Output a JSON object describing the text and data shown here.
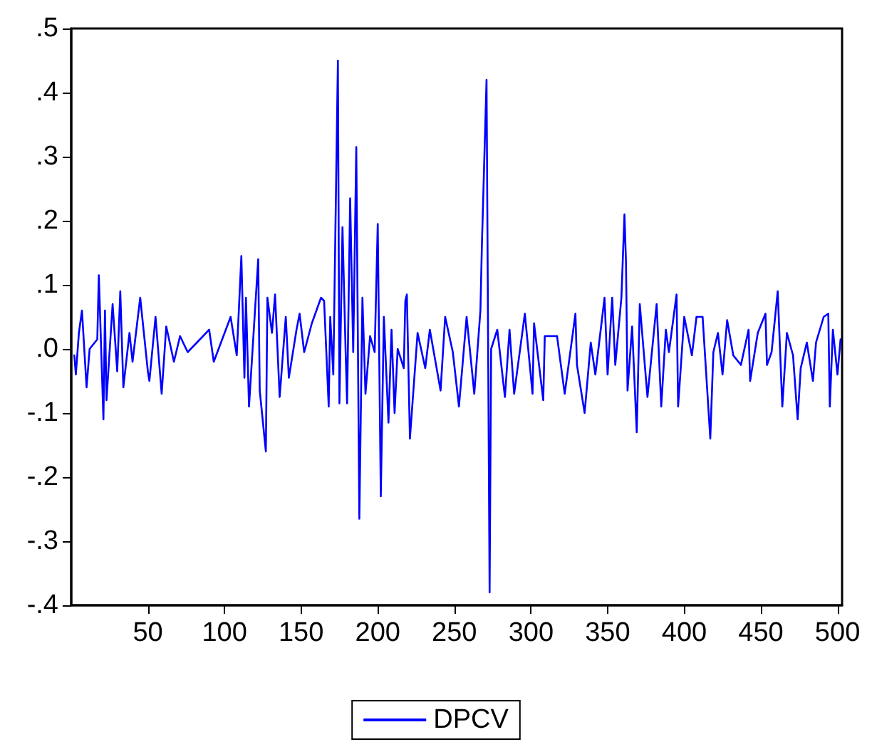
{
  "chart_data": {
    "type": "line",
    "x": [
      2,
      3,
      5,
      7,
      10,
      12,
      17,
      18,
      21,
      22,
      23,
      27,
      30,
      32,
      34,
      38,
      40,
      45,
      50,
      51,
      55,
      59,
      62,
      67,
      71,
      76,
      90,
      93,
      104,
      108,
      111,
      113,
      114,
      116,
      122,
      123,
      127,
      128,
      131,
      133,
      136,
      140,
      142,
      147,
      149,
      152,
      157,
      163,
      165,
      168,
      169,
      171,
      174,
      175,
      177,
      179,
      180,
      182,
      184,
      186,
      188,
      190,
      192,
      195,
      198,
      200,
      202,
      204,
      207,
      209,
      211,
      213,
      217,
      218,
      219,
      221,
      226,
      231,
      234,
      241,
      244,
      249,
      253,
      258,
      263,
      267,
      268,
      271,
      273,
      274,
      278,
      283,
      286,
      289,
      296,
      301,
      302,
      308,
      309,
      317,
      322,
      329,
      330,
      335,
      339,
      342,
      348,
      350,
      353,
      355,
      359,
      361,
      362,
      363,
      366,
      369,
      371,
      376,
      382,
      385,
      388,
      390,
      395,
      396,
      400,
      405,
      408,
      412,
      417,
      419,
      422,
      425,
      428,
      432,
      437,
      442,
      443,
      448,
      453,
      454,
      457,
      461,
      464,
      467,
      471,
      474,
      476,
      480,
      484,
      486,
      491,
      494,
      495,
      497,
      500,
      502
    ],
    "series": [
      {
        "name": "DPCV",
        "color": "#0000ff",
        "values": [
          -0.01,
          -0.04,
          0.025,
          0.06,
          -0.06,
          0,
          0.015,
          0.115,
          -0.11,
          0.06,
          -0.08,
          0.07,
          -0.035,
          0.09,
          -0.06,
          0.025,
          -0.02,
          0.08,
          -0.035,
          -0.05,
          0.05,
          -0.07,
          0.035,
          -0.02,
          0.02,
          -0.005,
          0.03,
          -0.02,
          0.05,
          -0.01,
          0.145,
          -0.045,
          0.08,
          -0.09,
          0.14,
          -0.065,
          -0.16,
          0.08,
          0.025,
          0.085,
          -0.075,
          0.05,
          -0.045,
          0.03,
          0.055,
          -0.005,
          0.04,
          0.08,
          0.075,
          -0.09,
          0.05,
          -0.04,
          0.45,
          -0.085,
          0.19,
          0,
          -0.085,
          0.235,
          -0.005,
          0.315,
          -0.265,
          0.08,
          -0.07,
          0.02,
          -0.005,
          0.195,
          -0.23,
          0.05,
          -0.115,
          0.03,
          -0.1,
          0,
          -0.03,
          0.075,
          0.085,
          -0.14,
          0.025,
          -0.03,
          0.03,
          -0.065,
          0.05,
          -0.005,
          -0.09,
          0.05,
          -0.07,
          0.06,
          0.165,
          0.42,
          -0.38,
          0,
          0.03,
          -0.075,
          0.03,
          -0.07,
          0.055,
          -0.07,
          0.04,
          -0.08,
          0.02,
          0.02,
          -0.07,
          0.055,
          -0.025,
          -0.1,
          0.01,
          -0.04,
          0.08,
          -0.04,
          0.08,
          -0.025,
          0.08,
          0.21,
          0.135,
          -0.065,
          0.035,
          -0.13,
          0.07,
          -0.075,
          0.07,
          -0.09,
          0.03,
          -0.005,
          0.085,
          -0.09,
          0.05,
          -0.01,
          0.05,
          0.05,
          -0.14,
          -0.005,
          0.025,
          -0.04,
          0.045,
          -0.01,
          -0.025,
          0.03,
          -0.05,
          0.025,
          0.055,
          -0.025,
          -0.005,
          0.09,
          -0.09,
          0.025,
          -0.01,
          -0.11,
          -0.03,
          0.01,
          -0.05,
          0.01,
          0.05,
          0.055,
          -0.09,
          0.03,
          -0.04,
          0.015
        ]
      }
    ],
    "xlim": [
      0,
      503
    ],
    "xticks": [
      50,
      100,
      150,
      200,
      250,
      300,
      350,
      400,
      450,
      500
    ],
    "ylim": [
      -0.4,
      0.5
    ],
    "yticks": [
      {
        "value": 0.5,
        "label": ".5"
      },
      {
        "value": 0.4,
        "label": ".4"
      },
      {
        "value": 0.3,
        "label": ".3"
      },
      {
        "value": 0.2,
        "label": ".2"
      },
      {
        "value": 0.1,
        "label": ".1"
      },
      {
        "value": 0,
        "label": ".0"
      },
      {
        "value": -0.1,
        "label": "-.1"
      },
      {
        "value": -0.2,
        "label": "-.2"
      },
      {
        "value": -0.3,
        "label": "-.3"
      },
      {
        "value": -0.4,
        "label": "-.4"
      }
    ],
    "grid": false,
    "legend": "bottom",
    "marker": "none",
    "line_style": "solid"
  }
}
